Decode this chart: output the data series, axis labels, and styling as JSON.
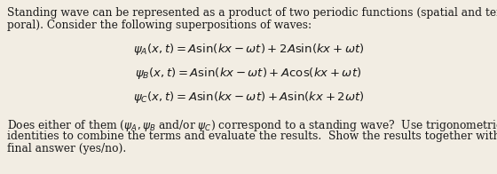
{
  "background_color": "#f2ede3",
  "text_color": "#1a1a1a",
  "intro_line1": "Standing wave can be represented as a product of two periodic functions (spatial and tem-",
  "intro_line2": "poral). Consider the following superpositions of waves:",
  "eq_A": "$\\psi_A(x,t) = A\\sin(kx - \\omega t) + 2A\\sin(kx + \\omega t)$",
  "eq_B": "$\\psi_B(x,t) = A\\sin(kx - \\omega t) + A\\cos(kx + \\omega t)$",
  "eq_C": "$\\psi_C(x,t) = A\\sin(kx - \\omega t) + A\\sin(kx + 2\\omega t)$",
  "footer_line1": "Does either of them ($\\psi_A, \\psi_B$ and/or $\\psi_C$) correspond to a standing wave?  Use trigonometric",
  "footer_line2": "identities to combine the terms and evaluate the results.  Show the results together with a",
  "footer_line3": "final answer (yes/no).",
  "fontsize_body": 8.8,
  "fontsize_eq": 9.5,
  "fig_width": 5.6,
  "fig_height": 1.96,
  "dpi": 100
}
